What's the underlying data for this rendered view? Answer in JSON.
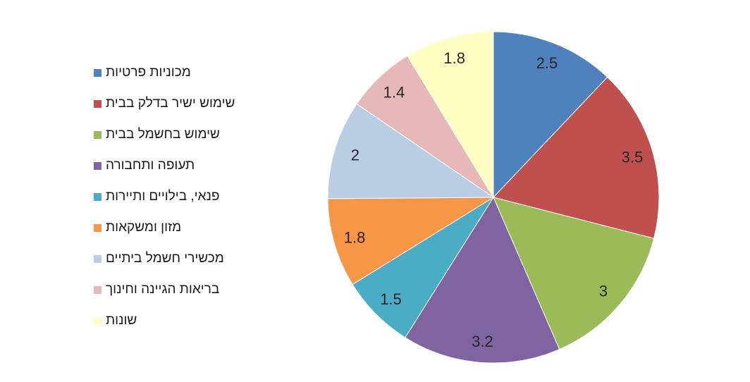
{
  "chart_data": {
    "type": "pie",
    "title": "",
    "categories": [
      "מכוניות פרטיות",
      "שימוש ישיר בדלק בבית",
      "שימוש בחשמל בבית",
      "תעופה ותחבורה",
      "פנאי, בילויים ותיירות",
      "מזון ומשקאות",
      "מכשירי חשמל ביתיים",
      "בריאות הגיינה וחינוך",
      "שונות"
    ],
    "values": [
      2.5,
      3.5,
      3,
      3.2,
      1.5,
      1.8,
      2,
      1.4,
      1.8
    ],
    "colors": [
      "#4f81bd",
      "#c0504d",
      "#9bbb59",
      "#8064a2",
      "#4bacc6",
      "#f79646",
      "#b9cde5",
      "#e6b9b8",
      "#ffffc4"
    ],
    "start_angle": "12 o'clock",
    "direction": "clockwise",
    "legend_position": "left",
    "data_labels": "inside-slices"
  }
}
